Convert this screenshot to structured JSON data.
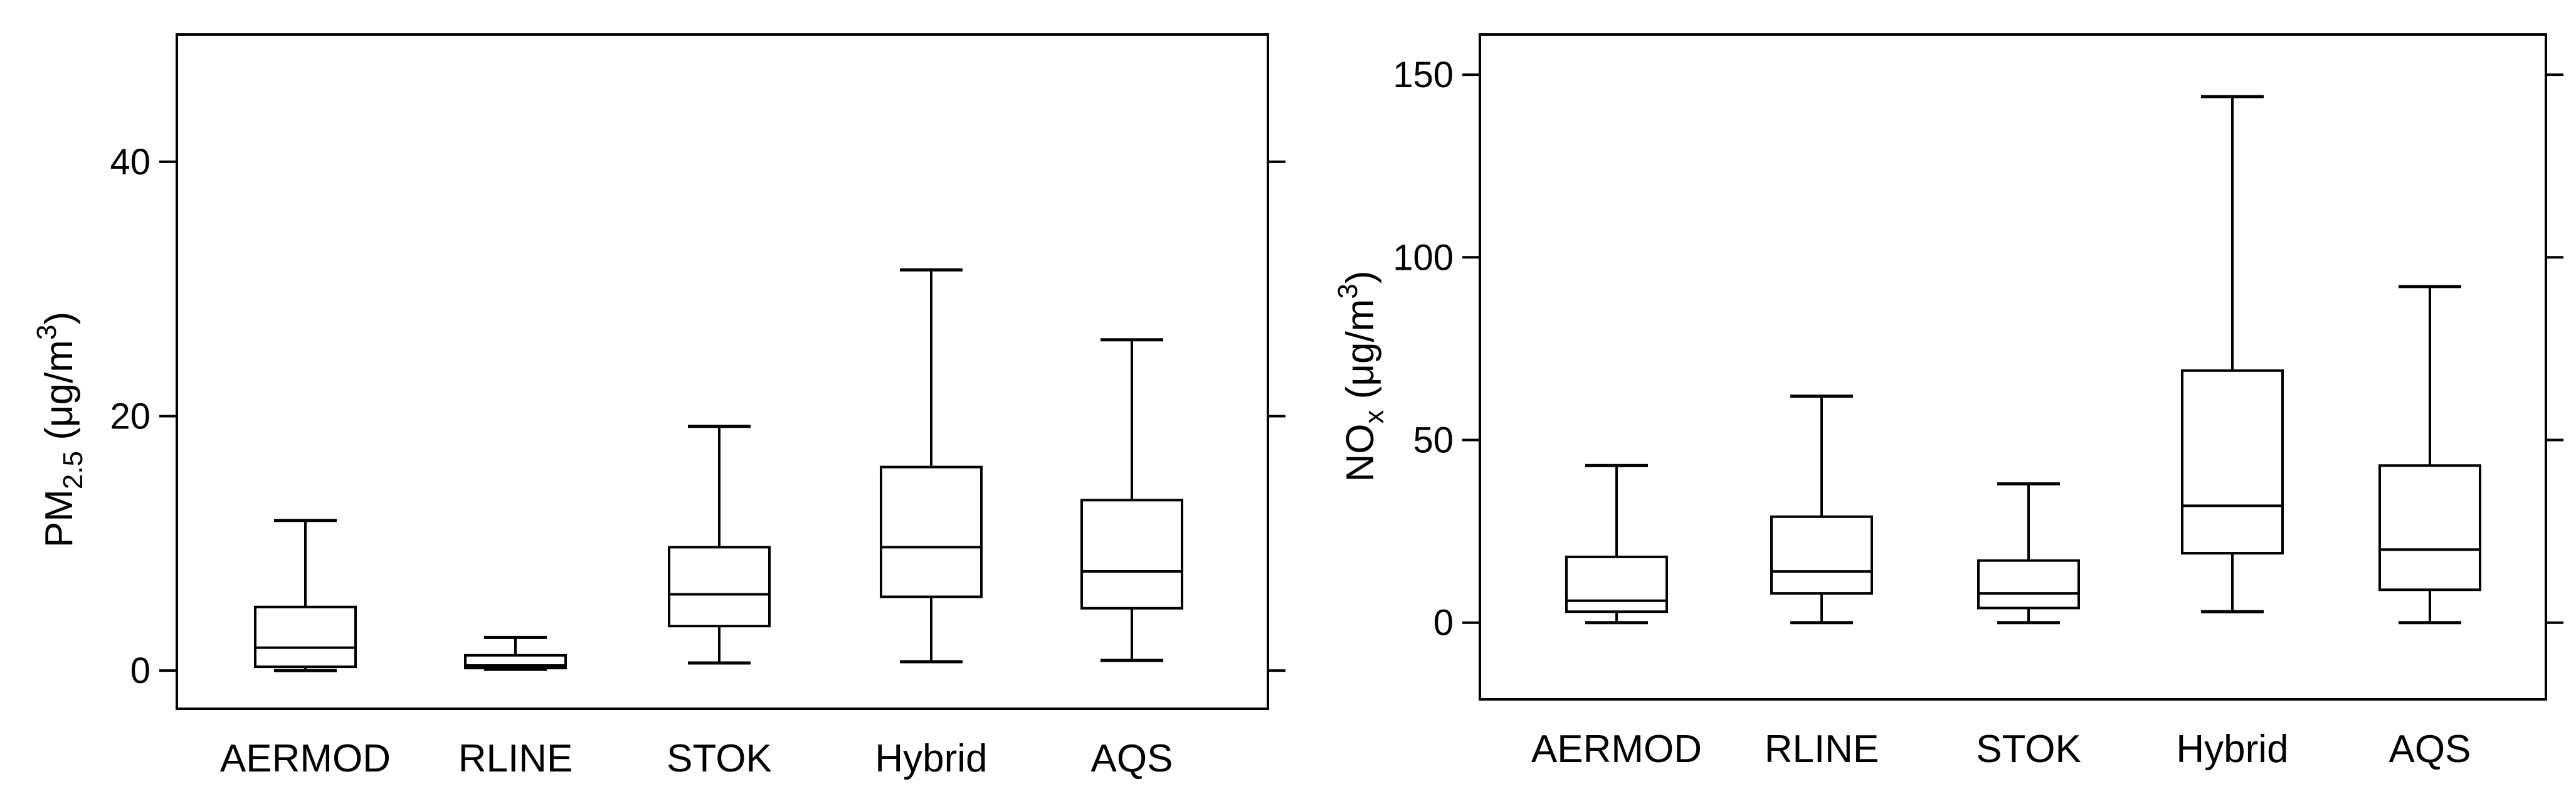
{
  "chart_data": [
    {
      "type": "box",
      "panel": "left",
      "ylabel": {
        "main": "PM",
        "sub": "2.5",
        "unit_prefix": " (μg/m",
        "unit_sup": "3",
        "unit_suffix": ")"
      },
      "ylim": [
        -3,
        50
      ],
      "yticks": [
        0,
        20,
        40
      ],
      "categories": [
        "AERMOD",
        "RLINE",
        "STOK",
        "Hybrid",
        "AQS"
      ],
      "boxes": [
        {
          "min": 0.0,
          "q1": 0.3,
          "median": 1.8,
          "q3": 5.0,
          "max": 11.8
        },
        {
          "min": 0.1,
          "q1": 0.2,
          "median": 0.4,
          "q3": 1.2,
          "max": 2.6
        },
        {
          "min": 0.6,
          "q1": 3.5,
          "median": 6.0,
          "q3": 9.7,
          "max": 19.2
        },
        {
          "min": 0.7,
          "q1": 5.8,
          "median": 9.7,
          "q3": 16.0,
          "max": 31.5
        },
        {
          "min": 0.8,
          "q1": 4.9,
          "median": 7.8,
          "q3": 13.4,
          "max": 26.0
        }
      ],
      "grid": false
    },
    {
      "type": "box",
      "panel": "right",
      "ylabel": {
        "main": "NO",
        "sub": "x",
        "unit_prefix": " (μg/m",
        "unit_sup": "3",
        "unit_suffix": ")"
      },
      "ylim": [
        -21,
        161
      ],
      "yticks": [
        0,
        50,
        100,
        150
      ],
      "categories": [
        "AERMOD",
        "RLINE",
        "STOK",
        "Hybrid",
        "AQS"
      ],
      "boxes": [
        {
          "min": 0,
          "q1": 3,
          "median": 6,
          "q3": 18,
          "max": 43
        },
        {
          "min": 0,
          "q1": 8,
          "median": 14,
          "q3": 29,
          "max": 62
        },
        {
          "min": 0,
          "q1": 4,
          "median": 8,
          "q3": 17,
          "max": 38
        },
        {
          "min": 3,
          "q1": 19,
          "median": 32,
          "q3": 69,
          "max": 144
        },
        {
          "min": 0,
          "q1": 9,
          "median": 20,
          "q3": 43,
          "max": 92
        }
      ],
      "grid": false
    }
  ]
}
